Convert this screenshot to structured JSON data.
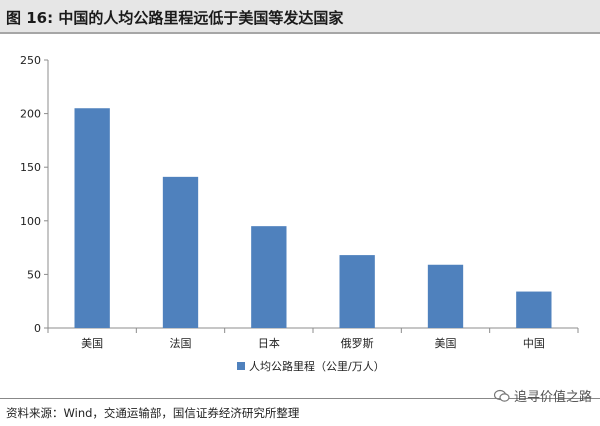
{
  "header": {
    "title": "图 16:  中国的人均公路里程远低于美国等发达国家"
  },
  "footer": {
    "source": "资料来源：Wind，交通运输部，国信证券经济研究所整理",
    "watermark": "追寻价值之路"
  },
  "colors": {
    "bar": "#4f81bd",
    "axis": "#8c8c8c",
    "title_bg": "#e6e6e6"
  },
  "chart_data": {
    "type": "bar",
    "title": "",
    "xlabel": "",
    "ylabel": "",
    "categories": [
      "美国",
      "法国",
      "日本",
      "俄罗斯",
      "美国",
      "中国"
    ],
    "series": [
      {
        "name": "人均公路里程（公里/万人）",
        "values": [
          205,
          141,
          95,
          68,
          59,
          34
        ]
      }
    ],
    "ylim": [
      0,
      250
    ],
    "yticks": [
      0,
      50,
      100,
      150,
      200,
      250
    ],
    "grid": false,
    "legend": "bottom-center"
  }
}
